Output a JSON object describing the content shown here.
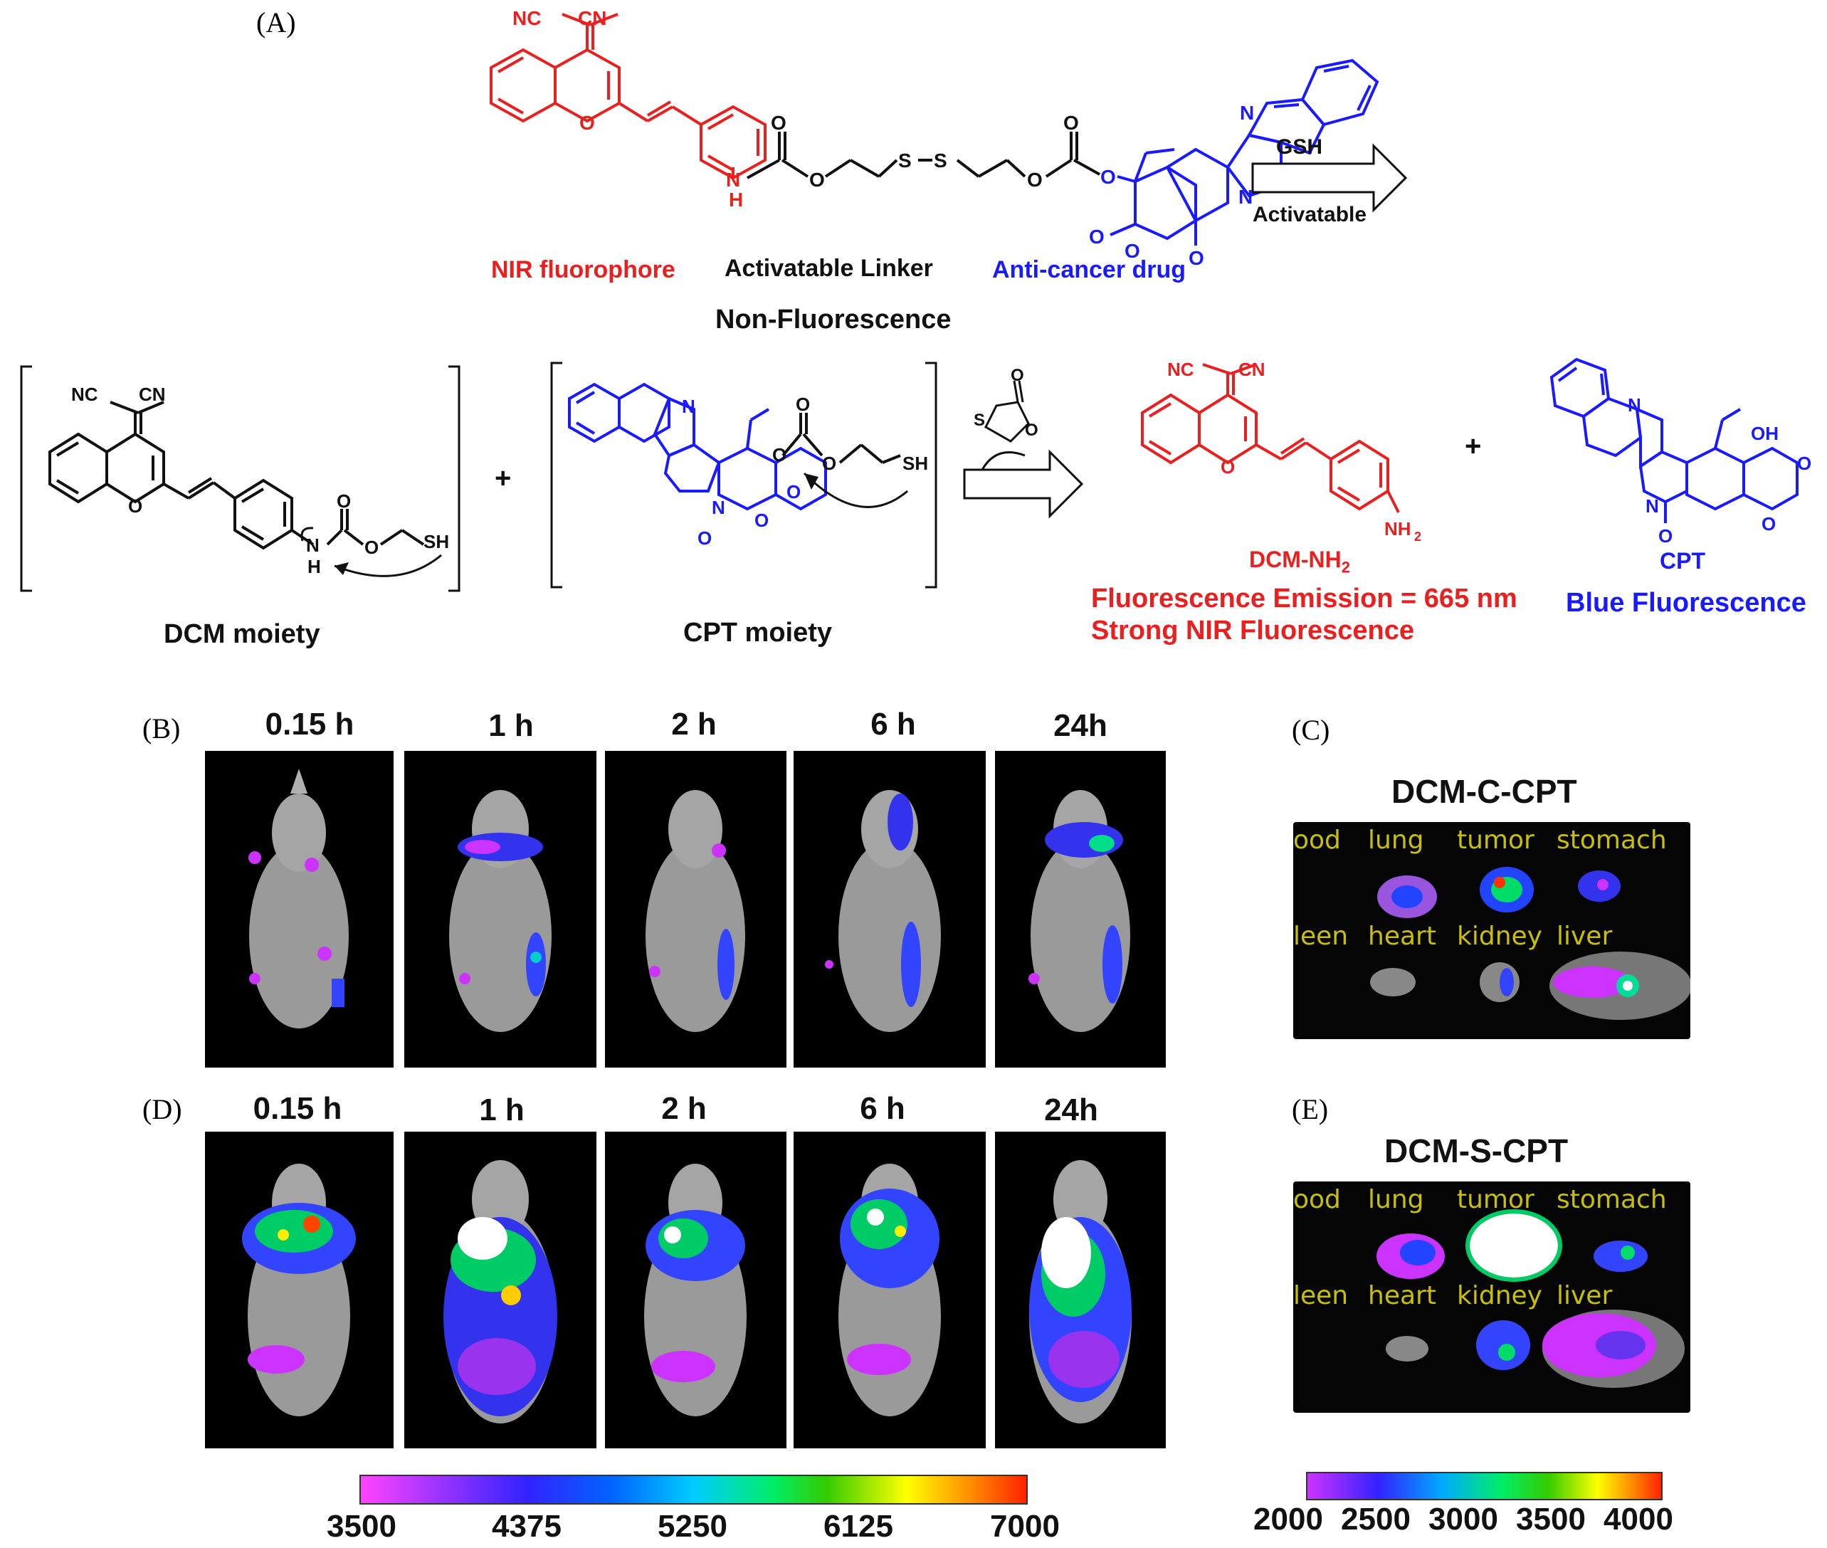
{
  "panel_a": {
    "letter": "(A)",
    "top_labels": {
      "fluorophore": "NIR fluorophore",
      "linker": "Activatable Linker",
      "drug": "Anti-cancer drug",
      "state": "Non-Fluorescence"
    },
    "arrow": {
      "above": "GSH",
      "below": "Activatable"
    },
    "moieties": {
      "dcm": "DCM moiety",
      "cpt": "CPT moiety",
      "plus": "+"
    },
    "products": {
      "dcm_nh2": "DCM-NH",
      "dcm_nh2_sub": "2",
      "cpt": "CPT",
      "emission": "Fluorescence Emission = 665 nm",
      "strong": "Strong NIR Fluorescence",
      "blue": "Blue Fluorescence",
      "plus": "+"
    },
    "atoms": {
      "nc": "NC",
      "cn": "CN",
      "n": "N",
      "h": "H",
      "o": "O",
      "s": "S",
      "sh": "SH",
      "oh": "OH",
      "nh2": "NH",
      "nh2_sub": "2"
    },
    "colors": {
      "fluorophore": "#e8201f",
      "drug": "#1a1aff",
      "linker": "#111111"
    }
  },
  "panel_b": {
    "letter": "(B)",
    "times": [
      "0.15 h",
      "1 h",
      "2 h",
      "6 h",
      "24h"
    ]
  },
  "panel_c": {
    "letter": "(C)",
    "title": "DCM-C-CPT",
    "organs_top": [
      "ood",
      "lung",
      "tumor",
      "stomach"
    ],
    "organs_bottom": [
      "leen",
      "heart",
      "kidney",
      "liver"
    ]
  },
  "panel_d": {
    "letter": "(D)",
    "times": [
      "0.15 h",
      "1 h",
      "2 h",
      "6 h",
      "24h"
    ]
  },
  "panel_e": {
    "letter": "(E)",
    "title": "DCM-S-CPT",
    "organs_top": [
      "ood",
      "lung",
      "tumor",
      "stomach"
    ],
    "organs_bottom": [
      "leen",
      "heart",
      "kidney",
      "liver"
    ]
  },
  "colorbar_left": {
    "ticks": [
      "3500",
      "4375",
      "5250",
      "6125",
      "7000"
    ]
  },
  "colorbar_right": {
    "ticks": [
      "2000",
      "2500",
      "3000",
      "3500",
      "4000"
    ]
  }
}
